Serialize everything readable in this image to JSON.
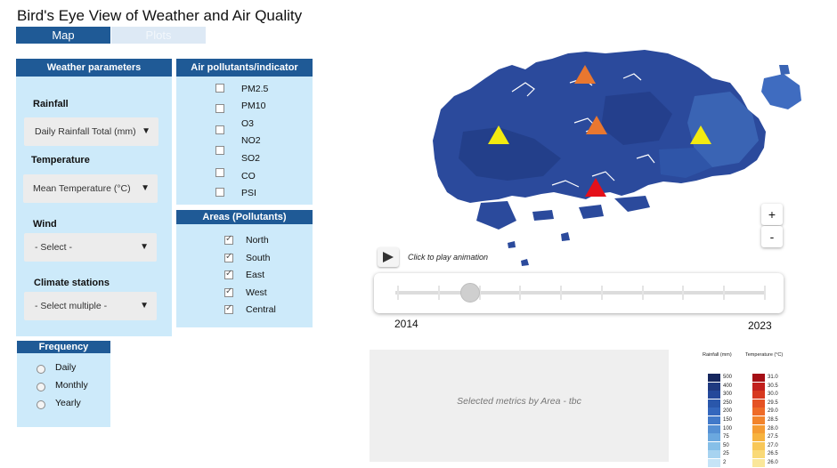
{
  "app": {
    "title": "Bird's Eye View of Weather and Air Quality"
  },
  "tabs": [
    {
      "label": "Map"
    },
    {
      "label": "Plots"
    }
  ],
  "weather": {
    "header": "Weather parameters",
    "rainfall": {
      "label": "Rainfall",
      "value": "Daily Rainfall Total (mm)"
    },
    "temperature": {
      "label": "Temperature",
      "value": "Mean Temperature (°C)"
    },
    "wind": {
      "label": "Wind",
      "value": "- Select -"
    },
    "stations": {
      "label": "Climate stations",
      "value": "- Select multiple -"
    }
  },
  "pollutants": {
    "header": "Air pollutants/indicator",
    "items": [
      {
        "label": "PM2.5",
        "checked": false
      },
      {
        "label": "PM10",
        "checked": false
      },
      {
        "label": "O3",
        "checked": false
      },
      {
        "label": "NO2",
        "checked": false
      },
      {
        "label": "SO2",
        "checked": false
      },
      {
        "label": "CO",
        "checked": false
      },
      {
        "label": "PSI",
        "checked": false
      }
    ]
  },
  "areas": {
    "header": "Areas (Pollutants)",
    "items": [
      {
        "label": "North",
        "checked": true
      },
      {
        "label": "South",
        "checked": true
      },
      {
        "label": "East",
        "checked": true
      },
      {
        "label": "West",
        "checked": true
      },
      {
        "label": "Central",
        "checked": true
      }
    ]
  },
  "frequency": {
    "header": "Frequency",
    "options": [
      {
        "label": "Daily"
      },
      {
        "label": "Monthly"
      },
      {
        "label": "Yearly"
      }
    ]
  },
  "animation": {
    "play_hint": "Click to play animation",
    "start_year": "2014",
    "end_year": "2023",
    "tick_count": 10,
    "position_fraction": 0.2
  },
  "zoom": {
    "in": "+",
    "out": "-"
  },
  "metrics": {
    "placeholder": "Selected metrics by Area - tbc"
  },
  "legend": {
    "rainfall": {
      "title": "Rainfall (mm)",
      "values": [
        "500",
        "400",
        "300",
        "250",
        "200",
        "150",
        "100",
        "75",
        "50",
        "25",
        "2"
      ],
      "colors": [
        "#16275e",
        "#1f3a80",
        "#24489a",
        "#2a57ab",
        "#3467bd",
        "#4179c9",
        "#5590d4",
        "#6ba8df",
        "#86bfe8",
        "#a7d3f0",
        "#c5e4f7"
      ]
    },
    "temperature": {
      "title": "Temperature (°C)",
      "values": [
        "31.0",
        "30.5",
        "30.0",
        "29.5",
        "29.0",
        "28.5",
        "28.0",
        "27.5",
        "27.0",
        "26.5",
        "26.0"
      ],
      "colors": [
        "#a50f15",
        "#c21f1c",
        "#d7381f",
        "#e55224",
        "#ee6b28",
        "#f2842c",
        "#f59c33",
        "#f7b33f",
        "#f8c758",
        "#f9d977",
        "#fae79a"
      ]
    }
  },
  "map": {
    "land_color": "#2b4a9c",
    "markers": [
      {
        "area": "North",
        "color": "#e9772f"
      },
      {
        "area": "Central",
        "color": "#e9772f"
      },
      {
        "area": "West",
        "color": "#f2ea10"
      },
      {
        "area": "East",
        "color": "#f2ea10"
      },
      {
        "area": "South",
        "color": "#e5101a"
      }
    ]
  }
}
